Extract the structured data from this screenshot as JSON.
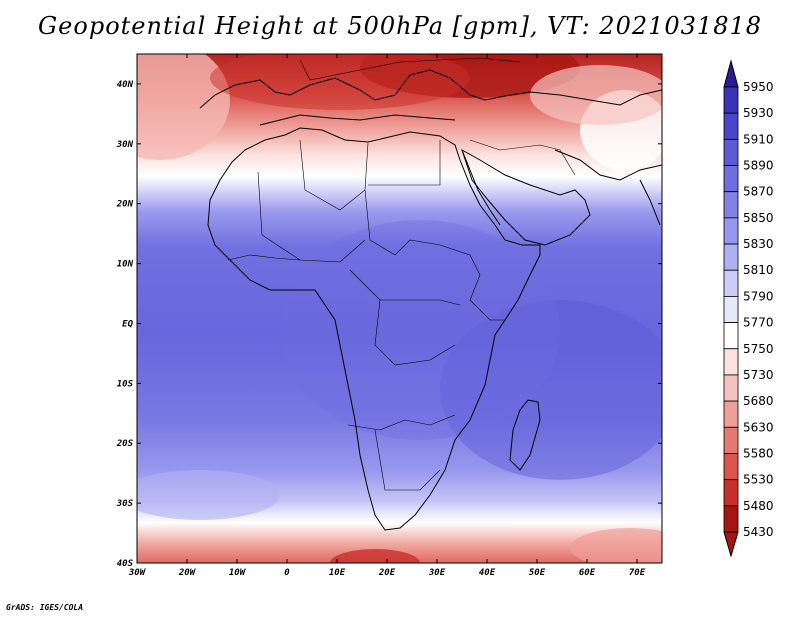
{
  "title": "Geopotential Height at 500hPa [gpm], VT: 2021031818",
  "credit": "GrADS: IGES/COLA",
  "map": {
    "variable": "Geopotential Height at 500hPa",
    "units": "gpm",
    "valid_time": "2021031818",
    "lon_range": [
      -30,
      75
    ],
    "lat_range": [
      -40,
      45
    ],
    "lon_ticks": [
      "30W",
      "20W",
      "10W",
      "0",
      "10E",
      "20E",
      "30E",
      "40E",
      "50E",
      "60E",
      "70E"
    ],
    "lon_tick_values": [
      -30,
      -20,
      -10,
      0,
      10,
      20,
      30,
      40,
      50,
      60,
      70
    ],
    "lat_ticks": [
      "40N",
      "30N",
      "20N",
      "10N",
      "EQ",
      "10S",
      "20S",
      "30S",
      "40S"
    ],
    "lat_tick_values": [
      40,
      30,
      20,
      10,
      0,
      -10,
      -20,
      -30,
      -40
    ]
  },
  "colorbar": {
    "levels": [
      "5950",
      "5930",
      "5910",
      "5890",
      "5870",
      "5850",
      "5830",
      "5810",
      "5790",
      "5770",
      "5750",
      "5730",
      "5680",
      "5630",
      "5580",
      "5530",
      "5480",
      "5430"
    ],
    "colors": [
      "#2a1c96",
      "#3a32b8",
      "#4a46cc",
      "#5d5ad8",
      "#6f6ee0",
      "#8281e8",
      "#9897ef",
      "#b0b1f4",
      "#cccdf8",
      "#e8e8fb",
      "#ffffff",
      "#fbe2e0",
      "#f6c4c0",
      "#ef9f99",
      "#e67a72",
      "#dc554d",
      "#c9302a",
      "#a81510"
    ],
    "top_arrow_color": "#2a1c96",
    "bottom_arrow_color": "#a81510"
  }
}
